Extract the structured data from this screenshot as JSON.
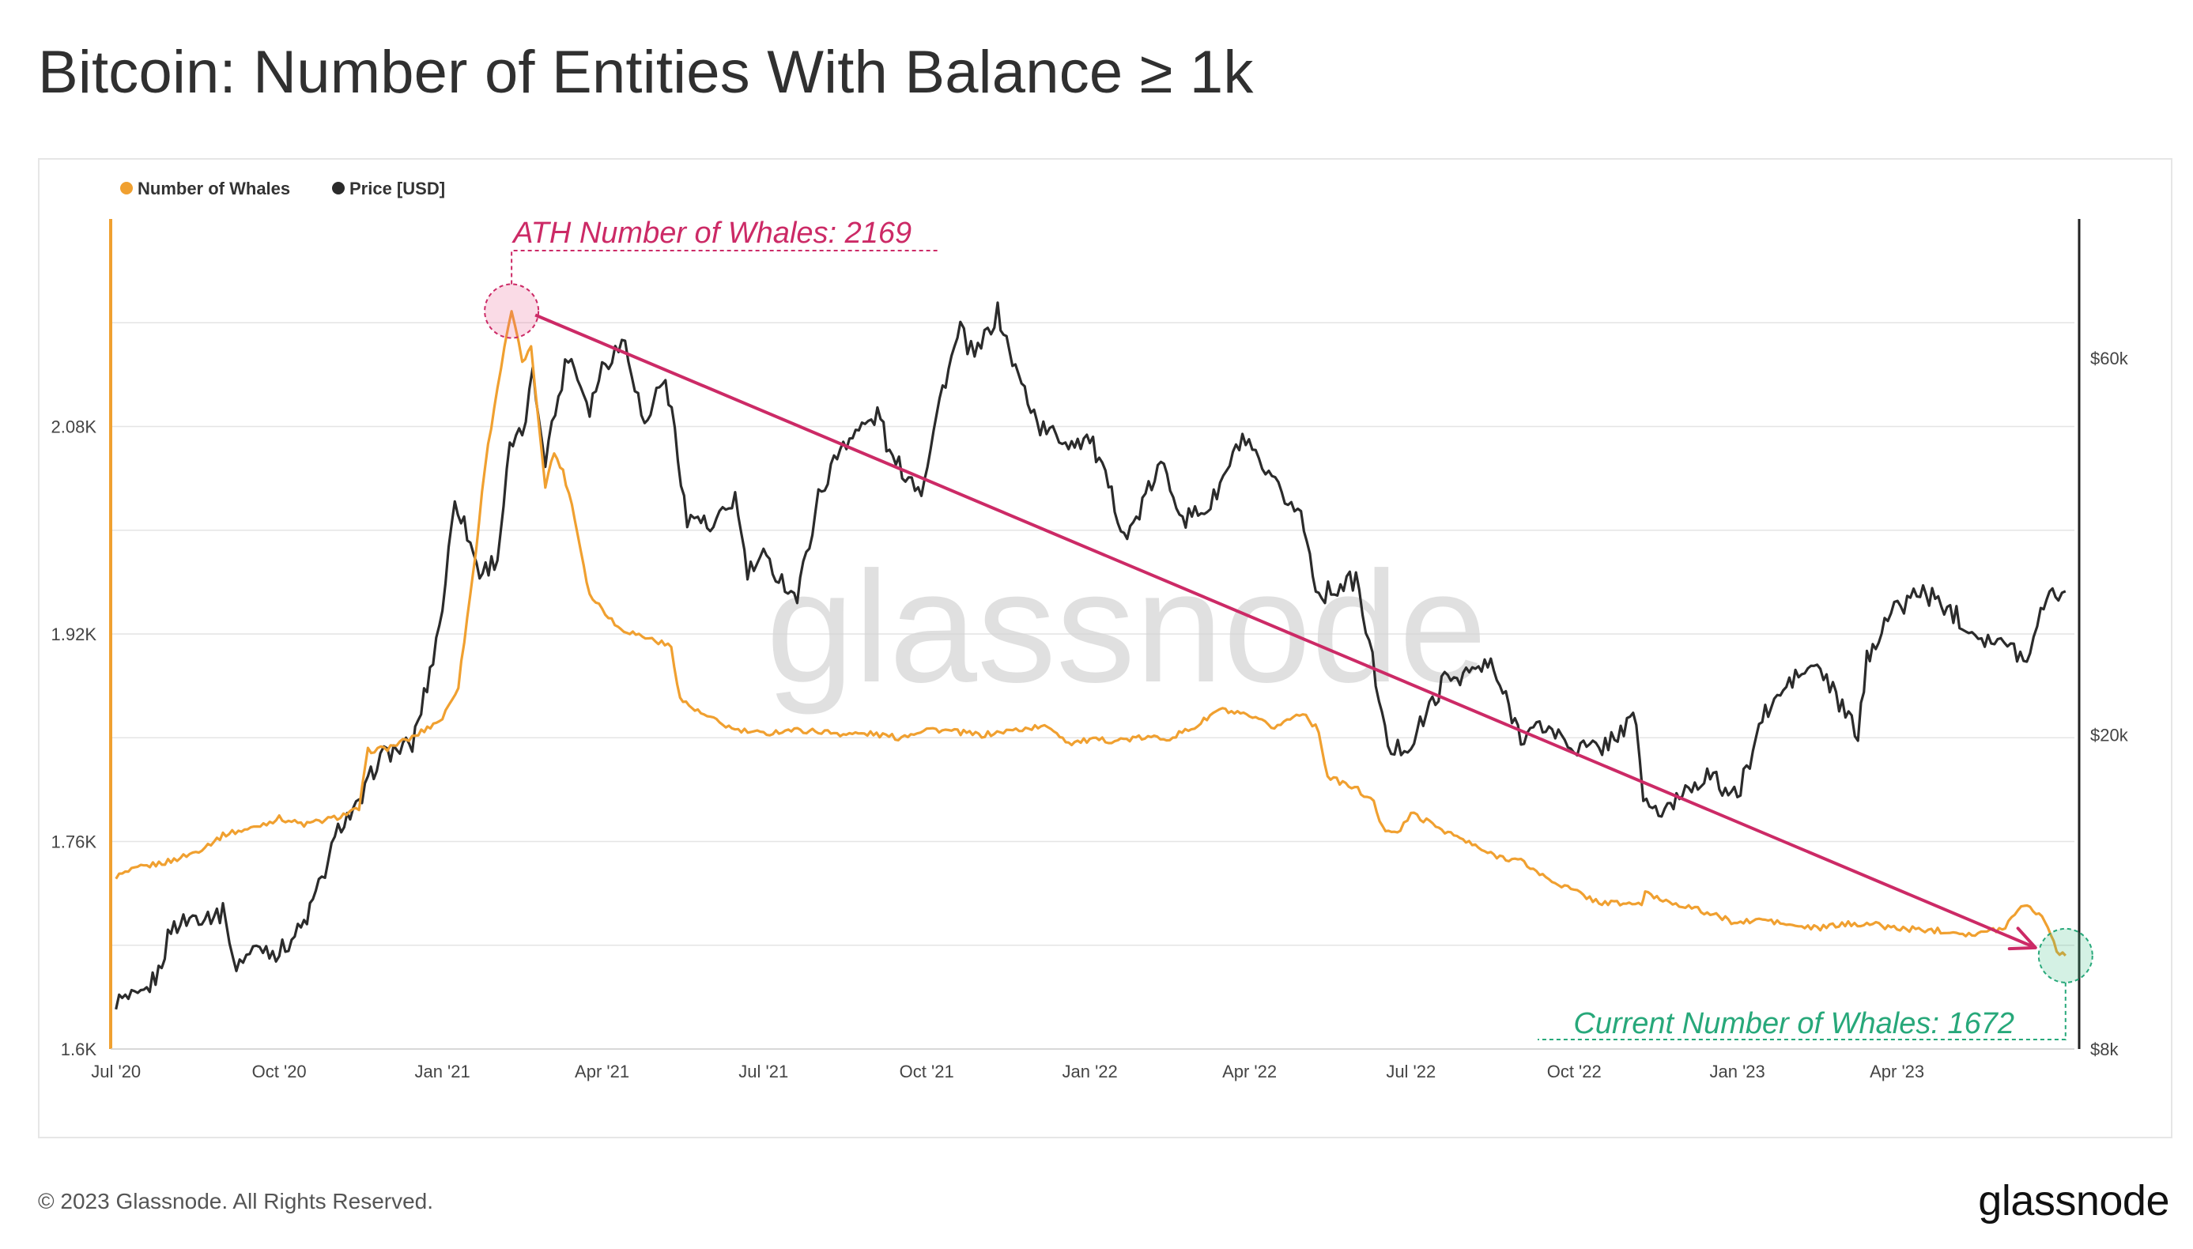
{
  "title": "Bitcoin: Number of Entities With Balance ≥ 1k",
  "footer": {
    "copyright": "© 2023 Glassnode. All Rights Reserved.",
    "logo": "glassnode"
  },
  "watermark": "glassnode",
  "colors": {
    "whales": "#f0a030",
    "price": "#2b2b2b",
    "ath": "#cc2a66",
    "current": "#27a87a",
    "grid": "#e4e4e4"
  },
  "annotations": {
    "ath": {
      "label": "ATH Number of Whales: 2169",
      "date": "2021-02-09",
      "value": 2169
    },
    "current": {
      "label": "Current Number of Whales: 1672",
      "date": "2023-07-05",
      "value": 1672
    }
  },
  "chart_data": {
    "type": "line",
    "title": "Bitcoin: Number of Entities With Balance ≥ 1k",
    "legend": {
      "position": "top-left",
      "entries": [
        "Number of Whales",
        "Price [USD]"
      ]
    },
    "grid": true,
    "x_axis": {
      "ticks": [
        {
          "date": "2020-07-01",
          "label": "Jul '20"
        },
        {
          "date": "2020-10-01",
          "label": "Oct '20"
        },
        {
          "date": "2021-01-01",
          "label": "Jan '21"
        },
        {
          "date": "2021-04-01",
          "label": "Apr '21"
        },
        {
          "date": "2021-07-01",
          "label": "Jul '21"
        },
        {
          "date": "2021-10-01",
          "label": "Oct '21"
        },
        {
          "date": "2022-01-01",
          "label": "Jan '22"
        },
        {
          "date": "2022-04-01",
          "label": "Apr '22"
        },
        {
          "date": "2022-07-01",
          "label": "Jul '22"
        },
        {
          "date": "2022-10-01",
          "label": "Oct '22"
        },
        {
          "date": "2023-01-01",
          "label": "Jan '23"
        },
        {
          "date": "2023-04-01",
          "label": "Apr '23"
        }
      ],
      "range": [
        "2020-06-28",
        "2023-07-10"
      ]
    },
    "y_left": {
      "name": "Number of Whales",
      "range": [
        1600,
        2240
      ],
      "ticks": [
        {
          "v": 1600,
          "label": "1.6K"
        },
        {
          "v": 1760,
          "label": "1.76K"
        },
        {
          "v": 1920,
          "label": "1.92K"
        },
        {
          "v": 2080,
          "label": "2.08K"
        }
      ]
    },
    "y_right": {
      "name": "Price [USD]",
      "scale": "log",
      "range": [
        8000,
        90000
      ],
      "ticks": [
        {
          "v": 8000,
          "label": "$8k"
        },
        {
          "v": 20000,
          "label": "$20k"
        },
        {
          "v": 60000,
          "label": "$60k"
        }
      ]
    },
    "series": [
      {
        "name": "Number of Whales",
        "axis": "left",
        "points": [
          [
            "2020-07-01",
            1733
          ],
          [
            "2020-07-15",
            1740
          ],
          [
            "2020-08-01",
            1745
          ],
          [
            "2020-08-15",
            1752
          ],
          [
            "2020-09-01",
            1766
          ],
          [
            "2020-09-15",
            1770
          ],
          [
            "2020-10-01",
            1778
          ],
          [
            "2020-10-15",
            1773
          ],
          [
            "2020-11-01",
            1778
          ],
          [
            "2020-11-15",
            1785
          ],
          [
            "2020-11-20",
            1830
          ],
          [
            "2020-12-01",
            1832
          ],
          [
            "2020-12-15",
            1840
          ],
          [
            "2021-01-01",
            1855
          ],
          [
            "2021-01-10",
            1880
          ],
          [
            "2021-01-20",
            1985
          ],
          [
            "2021-01-25",
            2050
          ],
          [
            "2021-02-01",
            2110
          ],
          [
            "2021-02-05",
            2140
          ],
          [
            "2021-02-09",
            2169
          ],
          [
            "2021-02-15",
            2130
          ],
          [
            "2021-02-20",
            2140
          ],
          [
            "2021-02-28",
            2035
          ],
          [
            "2021-03-05",
            2060
          ],
          [
            "2021-03-10",
            2045
          ],
          [
            "2021-03-15",
            2020
          ],
          [
            "2021-03-25",
            1950
          ],
          [
            "2021-04-01",
            1940
          ],
          [
            "2021-04-10",
            1925
          ],
          [
            "2021-04-20",
            1920
          ],
          [
            "2021-05-01",
            1915
          ],
          [
            "2021-05-10",
            1910
          ],
          [
            "2021-05-15",
            1870
          ],
          [
            "2021-05-25",
            1860
          ],
          [
            "2021-06-01",
            1855
          ],
          [
            "2021-06-15",
            1846
          ],
          [
            "2021-07-01",
            1843
          ],
          [
            "2021-07-15",
            1846
          ],
          [
            "2021-08-01",
            1845
          ],
          [
            "2021-08-15",
            1843
          ],
          [
            "2021-09-01",
            1843
          ],
          [
            "2021-09-15",
            1840
          ],
          [
            "2021-10-01",
            1847
          ],
          [
            "2021-10-15",
            1845
          ],
          [
            "2021-11-01",
            1842
          ],
          [
            "2021-11-15",
            1845
          ],
          [
            "2021-12-01",
            1848
          ],
          [
            "2021-12-10",
            1848
          ],
          [
            "2021-12-20",
            1836
          ],
          [
            "2022-01-01",
            1838
          ],
          [
            "2022-01-15",
            1838
          ],
          [
            "2022-02-01",
            1840
          ],
          [
            "2022-02-15",
            1840
          ],
          [
            "2022-03-01",
            1848
          ],
          [
            "2022-03-15",
            1862
          ],
          [
            "2022-04-01",
            1856
          ],
          [
            "2022-04-15",
            1848
          ],
          [
            "2022-05-01",
            1860
          ],
          [
            "2022-05-10",
            1845
          ],
          [
            "2022-05-15",
            1810
          ],
          [
            "2022-06-01",
            1800
          ],
          [
            "2022-06-10",
            1790
          ],
          [
            "2022-06-15",
            1770
          ],
          [
            "2022-06-25",
            1768
          ],
          [
            "2022-07-01",
            1782
          ],
          [
            "2022-07-15",
            1772
          ],
          [
            "2022-08-01",
            1760
          ],
          [
            "2022-08-15",
            1750
          ],
          [
            "2022-09-01",
            1745
          ],
          [
            "2022-09-15",
            1732
          ],
          [
            "2022-10-01",
            1722
          ],
          [
            "2022-10-15",
            1713
          ],
          [
            "2022-11-01",
            1712
          ],
          [
            "2022-11-08",
            1712
          ],
          [
            "2022-11-10",
            1720
          ],
          [
            "2022-11-20",
            1715
          ],
          [
            "2022-12-01",
            1711
          ],
          [
            "2022-12-15",
            1705
          ],
          [
            "2023-01-01",
            1697
          ],
          [
            "2023-01-15",
            1700
          ],
          [
            "2023-02-01",
            1695
          ],
          [
            "2023-02-15",
            1693
          ],
          [
            "2023-03-01",
            1696
          ],
          [
            "2023-03-15",
            1697
          ],
          [
            "2023-04-01",
            1693
          ],
          [
            "2023-04-15",
            1692
          ],
          [
            "2023-05-01",
            1691
          ],
          [
            "2023-05-15",
            1688
          ],
          [
            "2023-06-01",
            1694
          ],
          [
            "2023-06-10",
            1712
          ],
          [
            "2023-06-20",
            1705
          ],
          [
            "2023-06-25",
            1695
          ],
          [
            "2023-06-30",
            1676
          ],
          [
            "2023-07-05",
            1672
          ]
        ]
      },
      {
        "name": "Price [USD]",
        "axis": "right",
        "points": [
          [
            "2020-07-01",
            9200
          ],
          [
            "2020-07-15",
            9250
          ],
          [
            "2020-07-25",
            10000
          ],
          [
            "2020-08-01",
            11400
          ],
          [
            "2020-08-15",
            11800
          ],
          [
            "2020-09-01",
            11900
          ],
          [
            "2020-09-05",
            10200
          ],
          [
            "2020-09-20",
            10800
          ],
          [
            "2020-10-01",
            10600
          ],
          [
            "2020-10-15",
            11500
          ],
          [
            "2020-10-25",
            13100
          ],
          [
            "2020-11-05",
            15500
          ],
          [
            "2020-11-15",
            16200
          ],
          [
            "2020-11-25",
            18500
          ],
          [
            "2020-12-01",
            19000
          ],
          [
            "2020-12-15",
            19400
          ],
          [
            "2020-12-25",
            24000
          ],
          [
            "2021-01-01",
            29000
          ],
          [
            "2021-01-08",
            40000
          ],
          [
            "2021-01-15",
            36000
          ],
          [
            "2021-01-22",
            32000
          ],
          [
            "2021-02-01",
            33500
          ],
          [
            "2021-02-08",
            46000
          ],
          [
            "2021-02-15",
            48000
          ],
          [
            "2021-02-21",
            57000
          ],
          [
            "2021-02-28",
            45000
          ],
          [
            "2021-03-13",
            61000
          ],
          [
            "2021-03-25",
            52000
          ],
          [
            "2021-04-01",
            58500
          ],
          [
            "2021-04-14",
            63500
          ],
          [
            "2021-04-25",
            49000
          ],
          [
            "2021-05-05",
            57000
          ],
          [
            "2021-05-12",
            49000
          ],
          [
            "2021-05-19",
            37000
          ],
          [
            "2021-05-25",
            38000
          ],
          [
            "2021-06-01",
            36000
          ],
          [
            "2021-06-15",
            40000
          ],
          [
            "2021-06-22",
            32000
          ],
          [
            "2021-07-01",
            33500
          ],
          [
            "2021-07-20",
            29800
          ],
          [
            "2021-08-01",
            40000
          ],
          [
            "2021-08-15",
            47000
          ],
          [
            "2021-09-05",
            51000
          ],
          [
            "2021-09-10",
            45000
          ],
          [
            "2021-09-28",
            41000
          ],
          [
            "2021-10-10",
            55000
          ],
          [
            "2021-10-20",
            65000
          ],
          [
            "2021-10-28",
            60000
          ],
          [
            "2021-11-10",
            68500
          ],
          [
            "2021-11-20",
            58000
          ],
          [
            "2021-12-04",
            49000
          ],
          [
            "2021-12-20",
            47000
          ],
          [
            "2022-01-01",
            47500
          ],
          [
            "2022-01-22",
            35500
          ],
          [
            "2022-02-10",
            44000
          ],
          [
            "2022-02-24",
            37500
          ],
          [
            "2022-03-10",
            39000
          ],
          [
            "2022-03-28",
            47500
          ],
          [
            "2022-04-10",
            42500
          ],
          [
            "2022-04-30",
            38000
          ],
          [
            "2022-05-10",
            30000
          ],
          [
            "2022-05-31",
            31500
          ],
          [
            "2022-06-13",
            22500
          ],
          [
            "2022-06-18",
            19000
          ],
          [
            "2022-07-01",
            19500
          ],
          [
            "2022-07-20",
            23500
          ],
          [
            "2022-08-15",
            24500
          ],
          [
            "2022-09-01",
            20000
          ],
          [
            "2022-09-15",
            20500
          ],
          [
            "2022-10-01",
            19300
          ],
          [
            "2022-10-15",
            19200
          ],
          [
            "2022-11-05",
            21000
          ],
          [
            "2022-11-09",
            16500
          ],
          [
            "2022-11-21",
            15800
          ],
          [
            "2022-12-01",
            17000
          ],
          [
            "2022-12-15",
            17800
          ],
          [
            "2023-01-01",
            16600
          ],
          [
            "2023-01-15",
            21000
          ],
          [
            "2023-02-01",
            23500
          ],
          [
            "2023-02-15",
            24500
          ],
          [
            "2023-03-10",
            20000
          ],
          [
            "2023-03-15",
            24800
          ],
          [
            "2023-03-25",
            28000
          ],
          [
            "2023-04-14",
            30500
          ],
          [
            "2023-05-01",
            28800
          ],
          [
            "2023-05-15",
            27000
          ],
          [
            "2023-06-15",
            25000
          ],
          [
            "2023-06-21",
            29500
          ],
          [
            "2023-07-01",
            30500
          ],
          [
            "2023-07-05",
            30400
          ]
        ]
      }
    ]
  }
}
